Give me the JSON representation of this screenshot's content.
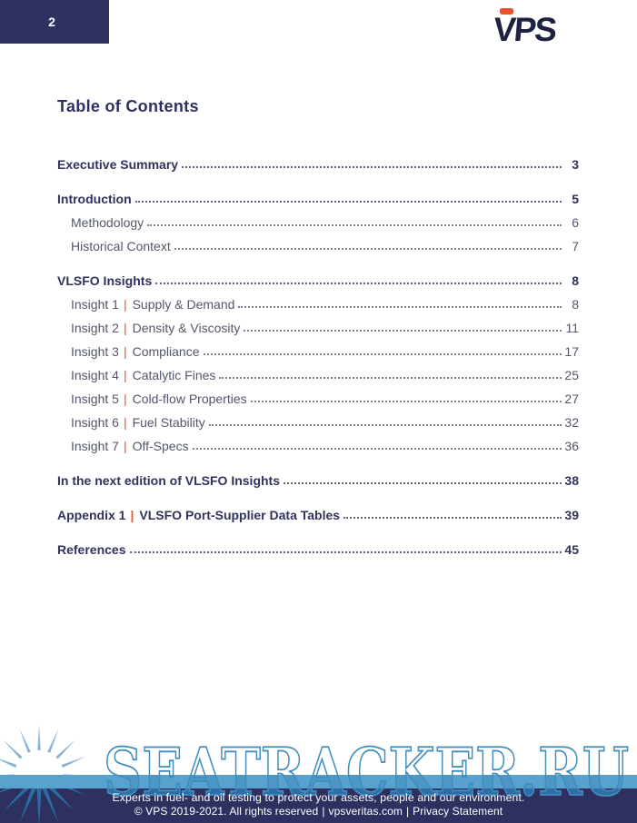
{
  "page": {
    "number": "2",
    "title": "Table of Contents"
  },
  "logo": {
    "text": "VPS",
    "accent_color": "#e8552e",
    "text_color": "#1c2240"
  },
  "toc": {
    "separator": "|",
    "entries": [
      {
        "label": "Executive Summary",
        "page": "3",
        "bold": true,
        "indent": false,
        "gap": false
      },
      {
        "label": "Introduction",
        "page": "5",
        "bold": true,
        "indent": false,
        "gap": true
      },
      {
        "label": "Methodology",
        "page": "6",
        "bold": false,
        "indent": true,
        "gap": false
      },
      {
        "label": "Historical Context",
        "page": "7",
        "bold": false,
        "indent": true,
        "gap": false
      },
      {
        "label": "VLSFO Insights",
        "page": "8",
        "bold": true,
        "indent": false,
        "gap": true
      },
      {
        "prefix": "Insight 1",
        "label": "Supply & Demand",
        "page": "8",
        "bold": false,
        "indent": true,
        "gap": false
      },
      {
        "prefix": "Insight 2",
        "label": "Density & Viscosity",
        "page": "11",
        "bold": false,
        "indent": true,
        "gap": false
      },
      {
        "prefix": "Insight 3",
        "label": "Compliance",
        "page": "17",
        "bold": false,
        "indent": true,
        "gap": false
      },
      {
        "prefix": "Insight 4",
        "label": "Catalytic Fines",
        "page": "25",
        "bold": false,
        "indent": true,
        "gap": false
      },
      {
        "prefix": "Insight 5",
        "label": "Cold-flow Properties",
        "page": "27",
        "bold": false,
        "indent": true,
        "gap": false
      },
      {
        "prefix": "Insight 6",
        "label": "Fuel Stability",
        "page": "32",
        "bold": false,
        "indent": true,
        "gap": false
      },
      {
        "prefix": "Insight 7",
        "label": "Off-Specs",
        "page": "36",
        "bold": false,
        "indent": true,
        "gap": false
      },
      {
        "label": "In the next edition of VLSFO Insights",
        "page": "38",
        "bold": true,
        "indent": false,
        "gap": true
      },
      {
        "prefix": "Appendix 1",
        "label": "VLSFO Port-Supplier Data Tables",
        "page": "39",
        "bold": true,
        "indent": false,
        "gap": true
      },
      {
        "label": "References",
        "page": "45",
        "bold": true,
        "indent": false,
        "gap": true
      }
    ]
  },
  "watermark": {
    "text": "SEATRACKER.RU",
    "band_color": "#58a3ce",
    "letter_color_over_footer": "#2d6fa5",
    "outline_color": "#3e8dbf"
  },
  "footer": {
    "line1": "Experts in fuel- and oil testing to protect your assets, people and our environment.",
    "copyright": "© VPS 2019-2021. All rights reserved",
    "separator": "|",
    "domain": "vpsveritas.com",
    "privacy": "Privacy Statement",
    "bar_color": "#2e3160"
  },
  "colors": {
    "navy": "#2e3160",
    "accent_orange": "#e8552e",
    "entry_gray": "#53576b",
    "sun_light": "#87b6d7",
    "sun_dark": "#2a6da4"
  }
}
